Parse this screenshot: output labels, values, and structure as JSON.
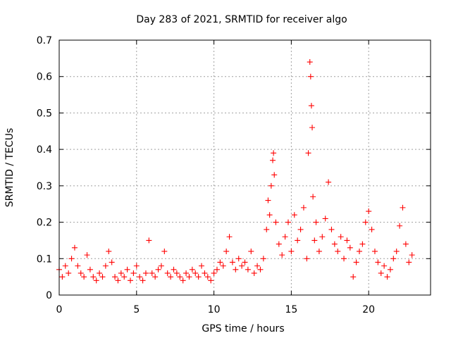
{
  "chart_data": {
    "type": "scatter",
    "title": "Day 283 of 2021, SRMTID for receiver algo",
    "xlabel": "GPS time / hours",
    "ylabel": "SRMTID / TECUs",
    "xlim": [
      0,
      24
    ],
    "ylim": [
      0,
      0.7
    ],
    "xticks": [
      0,
      5,
      10,
      15,
      20
    ],
    "xtick_labels": [
      "0",
      "5",
      "10",
      "15",
      "20"
    ],
    "yticks": [
      0,
      0.1,
      0.2,
      0.3,
      0.4,
      0.5,
      0.6,
      0.7
    ],
    "ytick_labels": [
      "0",
      "0.1",
      "0.2",
      "0.3",
      "0.4",
      "0.5",
      "0.6",
      "0.7"
    ],
    "grid": true,
    "marker": "plus",
    "color": "#ff0000",
    "series": [
      {
        "name": "SRMTID",
        "x": [
          0.0,
          0.2,
          0.4,
          0.6,
          0.8,
          1.0,
          1.2,
          1.4,
          1.6,
          1.8,
          2.0,
          2.2,
          2.4,
          2.6,
          2.8,
          3.0,
          3.2,
          3.4,
          3.6,
          3.8,
          4.0,
          4.2,
          4.4,
          4.6,
          4.8,
          5.0,
          5.2,
          5.4,
          5.6,
          5.8,
          6.0,
          6.2,
          6.4,
          6.6,
          6.8,
          7.0,
          7.2,
          7.4,
          7.6,
          7.8,
          8.0,
          8.2,
          8.4,
          8.6,
          8.8,
          9.0,
          9.2,
          9.4,
          9.6,
          9.8,
          10.0,
          10.2,
          10.4,
          10.6,
          10.8,
          11.0,
          11.2,
          11.4,
          11.6,
          11.8,
          12.0,
          12.2,
          12.4,
          12.6,
          12.8,
          13.0,
          13.2,
          13.4,
          13.5,
          13.6,
          13.7,
          13.8,
          13.85,
          13.9,
          14.0,
          14.2,
          14.4,
          14.6,
          14.8,
          15.0,
          15.2,
          15.4,
          15.6,
          15.8,
          16.0,
          16.1,
          16.2,
          16.25,
          16.3,
          16.35,
          16.4,
          16.5,
          16.6,
          16.8,
          17.0,
          17.2,
          17.4,
          17.6,
          17.8,
          18.0,
          18.2,
          18.4,
          18.6,
          18.8,
          19.0,
          19.2,
          19.4,
          19.6,
          19.8,
          20.0,
          20.2,
          20.4,
          20.6,
          20.8,
          21.0,
          21.2,
          21.4,
          21.6,
          21.8,
          22.0,
          22.2,
          22.4,
          22.6,
          22.8
        ],
        "y": [
          0.07,
          0.05,
          0.08,
          0.06,
          0.1,
          0.13,
          0.08,
          0.06,
          0.05,
          0.11,
          0.07,
          0.05,
          0.04,
          0.06,
          0.05,
          0.08,
          0.12,
          0.09,
          0.05,
          0.04,
          0.06,
          0.05,
          0.07,
          0.04,
          0.06,
          0.08,
          0.05,
          0.04,
          0.06,
          0.15,
          0.06,
          0.05,
          0.07,
          0.08,
          0.12,
          0.06,
          0.05,
          0.07,
          0.06,
          0.05,
          0.04,
          0.06,
          0.05,
          0.07,
          0.06,
          0.05,
          0.08,
          0.06,
          0.05,
          0.04,
          0.06,
          0.07,
          0.09,
          0.08,
          0.12,
          0.16,
          0.09,
          0.07,
          0.1,
          0.08,
          0.09,
          0.07,
          0.12,
          0.06,
          0.08,
          0.07,
          0.1,
          0.18,
          0.26,
          0.22,
          0.3,
          0.37,
          0.39,
          0.33,
          0.2,
          0.14,
          0.11,
          0.16,
          0.2,
          0.12,
          0.22,
          0.15,
          0.18,
          0.24,
          0.1,
          0.39,
          0.64,
          0.6,
          0.52,
          0.46,
          0.27,
          0.15,
          0.2,
          0.12,
          0.16,
          0.21,
          0.31,
          0.18,
          0.14,
          0.12,
          0.16,
          0.1,
          0.15,
          0.13,
          0.05,
          0.09,
          0.12,
          0.14,
          0.2,
          0.23,
          0.18,
          0.12,
          0.09,
          0.06,
          0.08,
          0.05,
          0.07,
          0.1,
          0.12,
          0.19,
          0.24,
          0.14,
          0.09,
          0.11
        ]
      }
    ]
  }
}
